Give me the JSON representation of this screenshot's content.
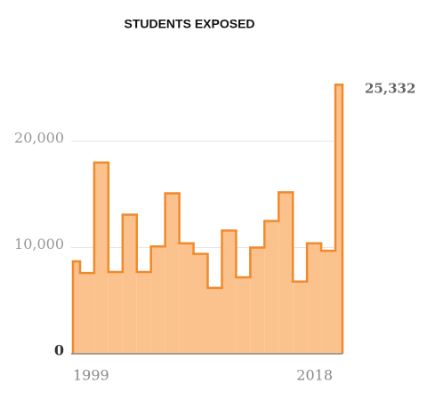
{
  "chart_data": {
    "type": "step-area",
    "title": "STUDENTS EXPOSED",
    "x": [
      1999,
      2000,
      2001,
      2002,
      2003,
      2004,
      2005,
      2006,
      2007,
      2008,
      2009,
      2010,
      2011,
      2012,
      2013,
      2014,
      2015,
      2016,
      2017,
      2018
    ],
    "values": [
      8700,
      7600,
      18000,
      7700,
      13100,
      7700,
      10100,
      15100,
      10400,
      9400,
      6200,
      11600,
      7200,
      10000,
      12500,
      15200,
      6800,
      10400,
      9700,
      25332
    ],
    "value_labels": [
      null,
      null,
      null,
      null,
      null,
      null,
      null,
      null,
      null,
      null,
      null,
      null,
      null,
      null,
      null,
      null,
      null,
      null,
      null,
      "25,332"
    ],
    "xlim": [
      1999,
      2018
    ],
    "xticks": [
      1999,
      2018
    ],
    "ylim": [
      0,
      20000
    ],
    "yticks": [
      0,
      {
        "value": 10000,
        "label": "10,000"
      },
      {
        "value": 20000,
        "label": "20,000"
      }
    ],
    "grid": true,
    "color": "#f08a2c",
    "fill_color": "#fbc28e"
  }
}
